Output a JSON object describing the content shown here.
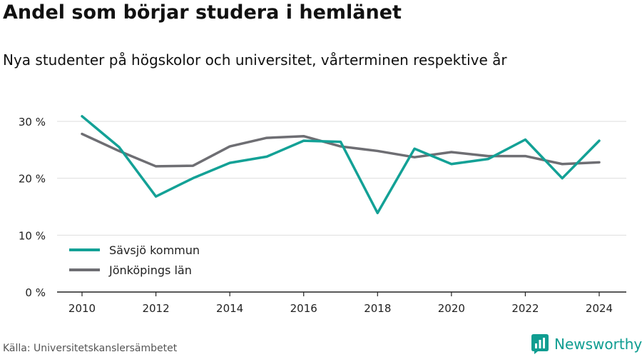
{
  "chart_data": {
    "type": "line",
    "title": "Andel som börjar studera i hemlänet",
    "subtitle": "Nya studenter på högskolor och universitet, vårterminen respektive år",
    "x": [
      2010,
      2011,
      2012,
      2013,
      2014,
      2015,
      2016,
      2017,
      2018,
      2019,
      2020,
      2021,
      2022,
      2023,
      2024
    ],
    "x_ticks": [
      2010,
      2012,
      2014,
      2016,
      2018,
      2020,
      2022,
      2024
    ],
    "x_tick_labels": [
      "2010",
      "2012",
      "2014",
      "2016",
      "2018",
      "2020",
      "2022",
      "2024"
    ],
    "ylim": [
      0,
      30
    ],
    "y_ticks": [
      0,
      10,
      20,
      30
    ],
    "y_tick_labels": [
      "0 %",
      "10 %",
      "20 %",
      "30 %"
    ],
    "grid": true,
    "legend_position": "bottom-left",
    "series": [
      {
        "name": "Sävsjö kommun",
        "color": "#13a196",
        "values": [
          30.9,
          25.5,
          16.8,
          20.0,
          22.7,
          23.8,
          26.6,
          26.4,
          13.9,
          25.2,
          22.5,
          23.4,
          26.8,
          20.0,
          26.6
        ]
      },
      {
        "name": "Jönköpings län",
        "color": "#6e6e73",
        "values": [
          27.8,
          24.8,
          22.1,
          22.2,
          25.6,
          27.1,
          27.4,
          25.6,
          24.8,
          23.7,
          24.6,
          23.9,
          23.9,
          22.5,
          22.8
        ]
      }
    ]
  },
  "source": "Källa: Universitetskanslersämbetet",
  "brand": {
    "name": "Newsworthy",
    "icon": "bar-chart-icon",
    "color": "#0f9d91"
  }
}
